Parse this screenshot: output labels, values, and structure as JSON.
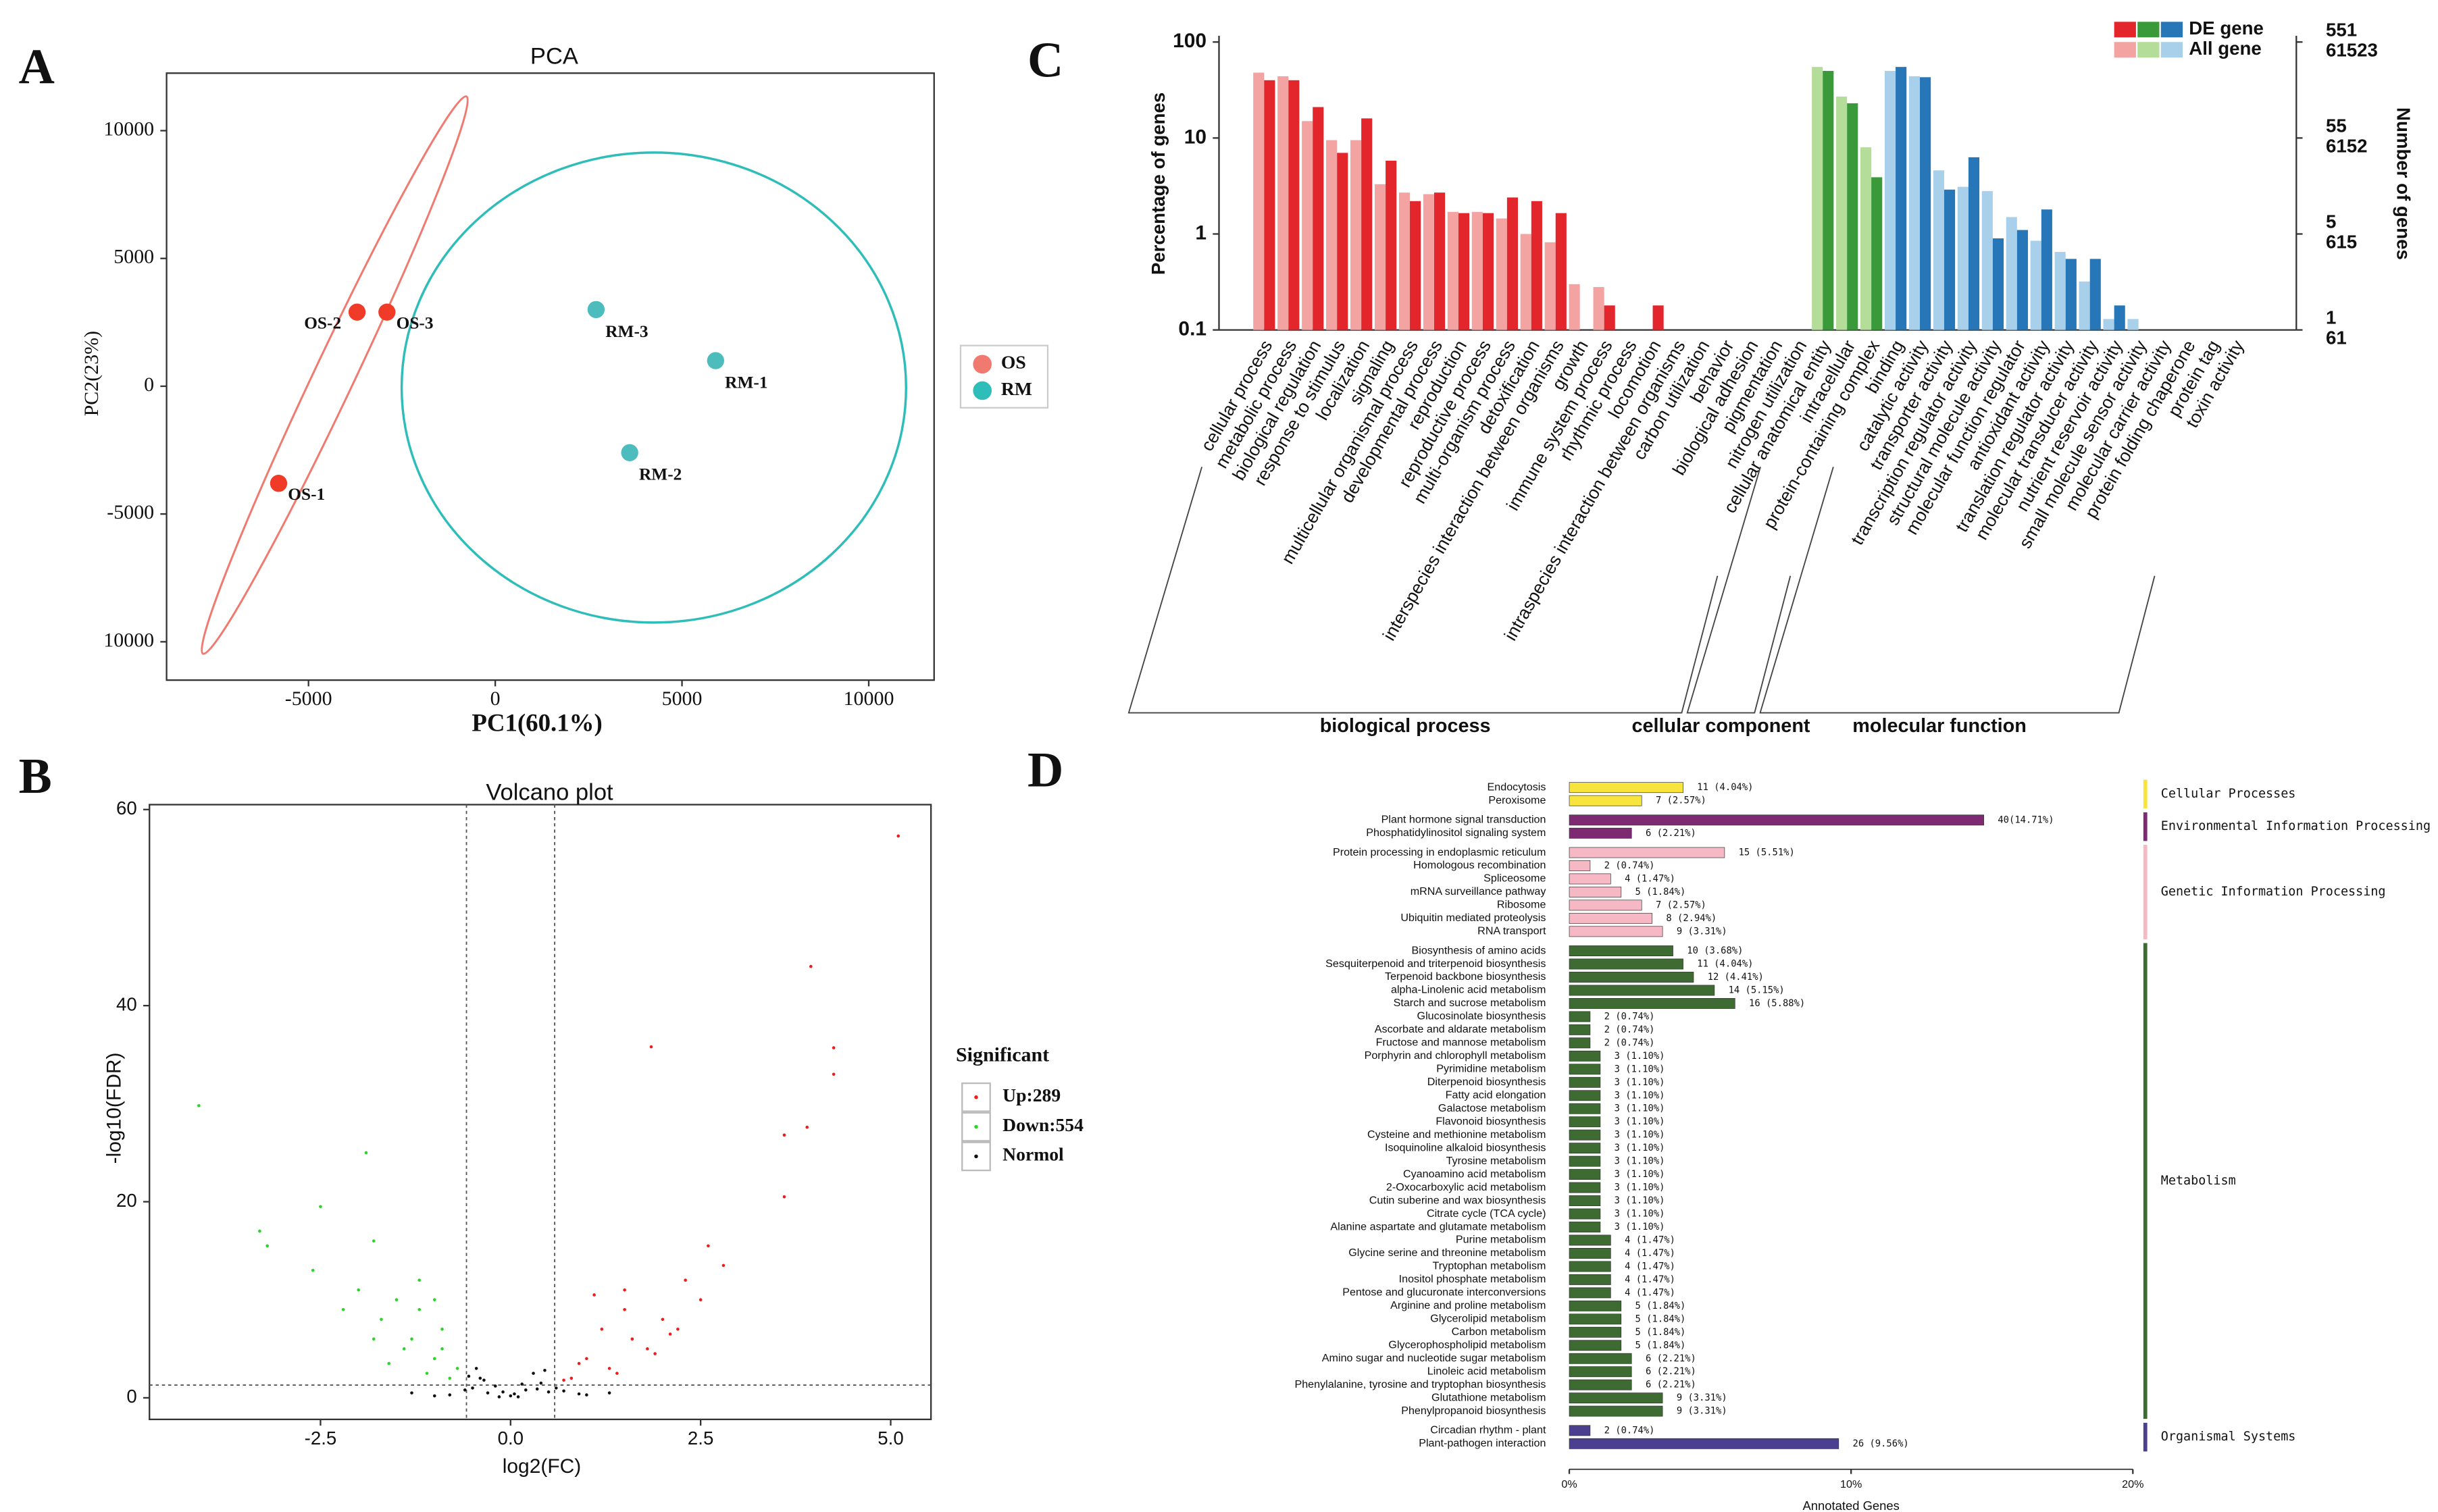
{
  "chart_data": [
    {
      "type": "scatter",
      "panel": "A",
      "title": "PCA",
      "x_label": "PC1(60.1%)",
      "y_label": "PC2(23%)",
      "xlim": [
        -8800,
        11750
      ],
      "ylim": [
        -11500,
        12250
      ],
      "xticks": [
        -5000,
        0,
        5000,
        10000
      ],
      "yticks": [
        {
          "value": -10000,
          "label": "10000"
        },
        -5000,
        0,
        5000,
        10000
      ],
      "series": [
        {
          "name": "OS",
          "color": "#f03b28",
          "legend_color": "#f07a70",
          "x": [
            -5800,
            -3700,
            -2900
          ],
          "y": [
            -3800,
            2900,
            2900
          ],
          "labels": [
            "OS-1",
            "OS-2",
            "OS-3"
          ]
        },
        {
          "name": "RM",
          "color": "#4cbcbc",
          "legend_color": "#2ebdb9",
          "x": [
            5900,
            3600,
            2700
          ],
          "y": [
            1000,
            -2600,
            3000
          ],
          "labels": [
            "RM-1",
            "RM-2",
            "RM-3"
          ]
        }
      ]
    },
    {
      "type": "scatter",
      "panel": "B",
      "title": "Volcano plot",
      "x_label": "log2(FC)",
      "y_label": "-log10(FDR)",
      "xlim": [
        -4.75,
        5.53
      ],
      "ylim": [
        -2.2,
        60.5
      ],
      "xticks": [
        -2.5,
        {
          "value": 0,
          "label": "0.0"
        },
        2.5,
        {
          "value": 5,
          "label": "5.0"
        }
      ],
      "yticks": [
        0,
        20,
        40,
        60
      ],
      "x_thresholds": [
        -0.58,
        0.58
      ],
      "y_threshold": 1.3,
      "legend_title": "Significant",
      "series": [
        {
          "name": "Up:289",
          "color": "#ee1c1c",
          "x": [
            5.1,
            3.95,
            4.25,
            4.25,
            1.85,
            3.9,
            3.6,
            3.6,
            2.6,
            2.8,
            2.3,
            1.5,
            1.2,
            2.0,
            1.8,
            1.0,
            1.3,
            0.8,
            2.2,
            1.6,
            0.9,
            2.5,
            1.1,
            1.5,
            0.7,
            1.9,
            2.1,
            1.4
          ],
          "y": [
            57.3,
            44,
            35.7,
            33,
            35.8,
            27.6,
            20.5,
            26.8,
            15.5,
            13.5,
            12,
            9,
            7,
            8,
            5,
            4,
            3,
            2,
            7,
            6,
            3.5,
            10,
            10.5,
            11,
            1.8,
            4.5,
            6.5,
            2.5
          ]
        },
        {
          "name": "Down:554",
          "color": "#2bd42b",
          "x": [
            -4.1,
            -1.9,
            -2.5,
            -3.3,
            -1.8,
            -3.2,
            -1.2,
            -1.5,
            -0.9,
            -1.3,
            -1.7,
            -1.0,
            -0.7,
            -1.1,
            -2.0,
            -1.4,
            -0.8,
            -2.2,
            -1.6,
            -1.2,
            -0.9,
            -2.6,
            -1.0,
            -1.8
          ],
          "y": [
            29.8,
            25,
            19.5,
            17,
            16,
            15.5,
            12,
            10,
            7,
            6,
            8,
            4,
            3,
            2.5,
            11,
            5,
            2,
            9,
            3.5,
            9,
            5,
            13,
            10,
            6
          ]
        },
        {
          "name": "Normol",
          "color": "#111111",
          "x": [
            -0.5,
            -0.4,
            -0.3,
            0,
            0.2,
            0.4,
            0.5,
            -0.2,
            0.1,
            0.3,
            -0.45,
            -1.3,
            1.3,
            -0.8,
            0.9,
            0.6,
            -0.1,
            -0.6,
            0.7,
            -1.0,
            1.0,
            -0.35,
            0.35,
            -0.55,
            0.45,
            0.05,
            -0.15,
            0.15
          ],
          "y": [
            1,
            2,
            0.5,
            0.2,
            0.8,
            1.5,
            0.6,
            1.2,
            0.1,
            2.5,
            3,
            0.5,
            0.5,
            0.3,
            0.4,
            1,
            0.6,
            0.8,
            0.7,
            0.2,
            0.3,
            1.8,
            0.9,
            2.2,
            2.8,
            0.4,
            0.1,
            1.4
          ]
        }
      ]
    },
    {
      "type": "bar",
      "panel": "C",
      "y_label": "Percentage of genes",
      "y2_label": "Number of genes",
      "log_y": true,
      "ylim": [
        0.1,
        100
      ],
      "yticks": [
        0.1,
        1,
        10,
        100
      ],
      "y2lim": [
        0.1,
        100
      ],
      "y2ticks": [
        {
          "value": 100,
          "label": "551"
        },
        {
          "value": 10,
          "label": "55"
        },
        {
          "value": 1,
          "label": "5"
        },
        {
          "value": 0.1,
          "label": "1"
        }
      ],
      "y2ticks_all": [
        {
          "value": 100,
          "label": "61523"
        },
        {
          "value": 10,
          "label": "6152"
        },
        {
          "value": 1,
          "label": "615"
        },
        {
          "value": 0.1,
          "label": "61"
        }
      ],
      "categories": [
        "cellular process",
        "metabolic process",
        "biological regulation",
        "response to stimulus",
        "localization",
        "signaling",
        "multicellular organismal process",
        "developmental process",
        "reproduction",
        "reproductive process",
        "multi-organism process",
        "detoxification",
        "interspecies interaction between organisms",
        "growth",
        "immune system process",
        "rhythmic process",
        "locomotion",
        "intraspecies interaction between organisms",
        "carbon utilization",
        "behavior",
        "biological adhesion",
        "pigmentation",
        "nitrogen utilization",
        "cellular anatomical entity",
        "intracellular",
        "protein-containing complex",
        "binding",
        "catalytic activity",
        "transporter activity",
        "transcription regulator activity",
        "structural molecule activity",
        "molecular function regulator",
        "antioxidant activity",
        "translation regulator activity",
        "molecular transducer activity",
        "nutrient reservoir activity",
        "small molecule sensor activity",
        "molecular carrier activity",
        "protein folding chaperone",
        "protein tag",
        "toxin activity"
      ],
      "category_groups": [
        "biological process",
        "biological process",
        "biological process",
        "biological process",
        "biological process",
        "biological process",
        "biological process",
        "biological process",
        "biological process",
        "biological process",
        "biological process",
        "biological process",
        "biological process",
        "biological process",
        "biological process",
        "biological process",
        "biological process",
        "biological process",
        "biological process",
        "biological process",
        "biological process",
        "biological process",
        "biological process",
        "cellular component",
        "cellular component",
        "cellular component",
        "molecular function",
        "molecular function",
        "molecular function",
        "molecular function",
        "molecular function",
        "molecular function",
        "molecular function",
        "molecular function",
        "molecular function",
        "molecular function",
        "molecular function",
        "molecular function",
        "molecular function",
        "molecular function",
        "molecular function"
      ],
      "series": [
        {
          "name": "All gene",
          "colors": {
            "biological process": "#f4a3a3",
            "cellular component": "#b5dd9a",
            "molecular function": "#a9d0ea"
          },
          "values": [
            48,
            44,
            15,
            9.5,
            9.5,
            3.3,
            2.7,
            2.6,
            1.7,
            1.7,
            1.45,
            1.0,
            0.82,
            0.3,
            0.28,
            null,
            null,
            null,
            null,
            null,
            null,
            null,
            null,
            55,
            27,
            8,
            50,
            44,
            4.6,
            3.1,
            2.8,
            1.5,
            0.85,
            0.65,
            0.32,
            0.13,
            0.13,
            null,
            null,
            null,
            null
          ]
        },
        {
          "name": "DE gene",
          "colors": {
            "biological process": "#e3262b",
            "cellular component": "#3a9a3a",
            "molecular function": "#2777b8"
          },
          "values": [
            40,
            40,
            21,
            7,
            16,
            5.8,
            2.2,
            2.7,
            1.65,
            1.65,
            2.4,
            2.2,
            1.65,
            null,
            0.18,
            null,
            0.18,
            null,
            null,
            null,
            null,
            null,
            null,
            50,
            23,
            3.9,
            55,
            43,
            2.9,
            6.3,
            0.9,
            1.1,
            1.8,
            0.55,
            0.55,
            0.18,
            null,
            null,
            null,
            null,
            null
          ]
        }
      ]
    },
    {
      "type": "hbar",
      "panel": "D",
      "x_label": "Annotated Genes",
      "xlim": [
        0,
        20
      ],
      "xticks": [
        {
          "value": 0,
          "label": "0%"
        },
        {
          "value": 10,
          "label": "10%"
        },
        {
          "value": 20,
          "label": "20%"
        }
      ],
      "groups": [
        {
          "name": "Cellular Processes",
          "color": "#f7e43c",
          "categories": [
            "Endocytosis",
            "Peroxisome"
          ],
          "values": [
            4.04,
            2.57
          ],
          "value_labels": [
            "11 (4.04%)",
            "7 (2.57%)"
          ]
        },
        {
          "name": "Environmental Information Processing",
          "color": "#7d2a72",
          "categories": [
            "Plant hormone signal transduction",
            "Phosphatidylinositol signaling system"
          ],
          "values": [
            14.71,
            2.21
          ],
          "value_labels": [
            "40(14.71%)",
            "6 (2.21%)"
          ]
        },
        {
          "name": "Genetic Information Processing",
          "color": "#f5b8c4",
          "categories": [
            "Protein processing in endoplasmic reticulum",
            "Homologous recombination",
            "Spliceosome",
            "mRNA surveillance pathway",
            "Ribosome",
            "Ubiquitin mediated proteolysis",
            "RNA transport"
          ],
          "values": [
            5.51,
            0.74,
            1.47,
            1.84,
            2.57,
            2.94,
            3.31
          ],
          "value_labels": [
            "15 (5.51%)",
            "2 (0.74%)",
            "4 (1.47%)",
            "5 (1.84%)",
            "7 (2.57%)",
            "8 (2.94%)",
            "9 (3.31%)"
          ]
        },
        {
          "name": "Metabolism",
          "color": "#3d6b32",
          "categories": [
            "Biosynthesis of amino acids",
            "Sesquiterpenoid and triterpenoid biosynthesis",
            "Terpenoid backbone biosynthesis",
            "alpha-Linolenic acid metabolism",
            "Starch and sucrose metabolism",
            "Glucosinolate biosynthesis",
            "Ascorbate and aldarate metabolism",
            "Fructose and mannose metabolism",
            "Porphyrin and chlorophyll metabolism",
            "Pyrimidine metabolism",
            "Diterpenoid biosynthesis",
            "Fatty acid elongation",
            "Galactose metabolism",
            "Flavonoid biosynthesis",
            "Cysteine and methionine metabolism",
            "Isoquinoline alkaloid biosynthesis",
            "Tyrosine metabolism",
            "Cyanoamino acid metabolism",
            "2-Oxocarboxylic acid metabolism",
            "Cutin suberine and wax biosynthesis",
            "Citrate cycle (TCA cycle)",
            "Alanine aspartate and glutamate metabolism",
            "Purine metabolism",
            "Glycine serine and threonine metabolism",
            "Tryptophan metabolism",
            "Inositol phosphate metabolism",
            "Pentose and glucuronate interconversions",
            "Arginine and proline metabolism",
            "Glycerolipid metabolism",
            "Carbon metabolism",
            "Glycerophospholipid metabolism",
            "Amino sugar and nucleotide sugar metabolism",
            "Linoleic acid metabolism",
            "Phenylalanine, tyrosine and tryptophan biosynthesis",
            "Glutathione metabolism",
            "Phenylpropanoid biosynthesis"
          ],
          "values": [
            3.68,
            4.04,
            4.41,
            5.15,
            5.88,
            0.74,
            0.74,
            0.74,
            1.1,
            1.1,
            1.1,
            1.1,
            1.1,
            1.1,
            1.1,
            1.1,
            1.1,
            1.1,
            1.1,
            1.1,
            1.1,
            1.1,
            1.47,
            1.47,
            1.47,
            1.47,
            1.47,
            1.84,
            1.84,
            1.84,
            1.84,
            2.21,
            2.21,
            2.21,
            3.31,
            3.31
          ],
          "value_labels": [
            "10 (3.68%)",
            "11 (4.04%)",
            "12 (4.41%)",
            "14 (5.15%)",
            "16 (5.88%)",
            "2 (0.74%)",
            "2 (0.74%)",
            "2 (0.74%)",
            "3 (1.10%)",
            "3 (1.10%)",
            "3 (1.10%)",
            "3 (1.10%)",
            "3 (1.10%)",
            "3 (1.10%)",
            "3 (1.10%)",
            "3 (1.10%)",
            "3 (1.10%)",
            "3 (1.10%)",
            "3 (1.10%)",
            "3 (1.10%)",
            "3 (1.10%)",
            "3 (1.10%)",
            "4 (1.47%)",
            "4 (1.47%)",
            "4 (1.47%)",
            "4 (1.47%)",
            "4 (1.47%)",
            "5 (1.84%)",
            "5 (1.84%)",
            "5 (1.84%)",
            "5 (1.84%)",
            "6 (2.21%)",
            "6 (2.21%)",
            "6 (2.21%)",
            "9 (3.31%)",
            "9 (3.31%)"
          ]
        },
        {
          "name": "Organismal Systems",
          "color": "#4b3f90",
          "categories": [
            "Circadian rhythm - plant",
            "Plant-pathogen interaction"
          ],
          "values": [
            0.74,
            9.56
          ],
          "value_labels": [
            "2 (0.74%)",
            "26 (9.56%)"
          ]
        }
      ]
    }
  ]
}
